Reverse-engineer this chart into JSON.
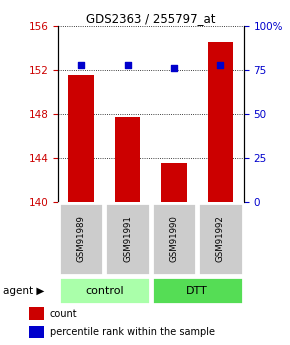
{
  "title": "GDS2363 / 255797_at",
  "samples": [
    "GSM91989",
    "GSM91991",
    "GSM91990",
    "GSM91992"
  ],
  "counts": [
    151.5,
    147.7,
    143.5,
    154.5
  ],
  "percentiles": [
    78,
    78,
    76,
    78
  ],
  "ylim_left": [
    140,
    156
  ],
  "ylim_right": [
    0,
    100
  ],
  "yticks_left": [
    140,
    144,
    148,
    152,
    156
  ],
  "yticks_right": [
    0,
    25,
    50,
    75,
    100
  ],
  "ytick_labels_right": [
    "0",
    "25",
    "50",
    "75",
    "100%"
  ],
  "bar_color": "#cc0000",
  "dot_color": "#0000cc",
  "groups": [
    {
      "label": "control",
      "indices": [
        0,
        1
      ],
      "color": "#aaffaa"
    },
    {
      "label": "DTT",
      "indices": [
        2,
        3
      ],
      "color": "#55dd55"
    }
  ],
  "sample_box_color": "#cccccc",
  "legend_count_color": "#cc0000",
  "legend_dot_color": "#0000cc",
  "bar_width": 0.55
}
